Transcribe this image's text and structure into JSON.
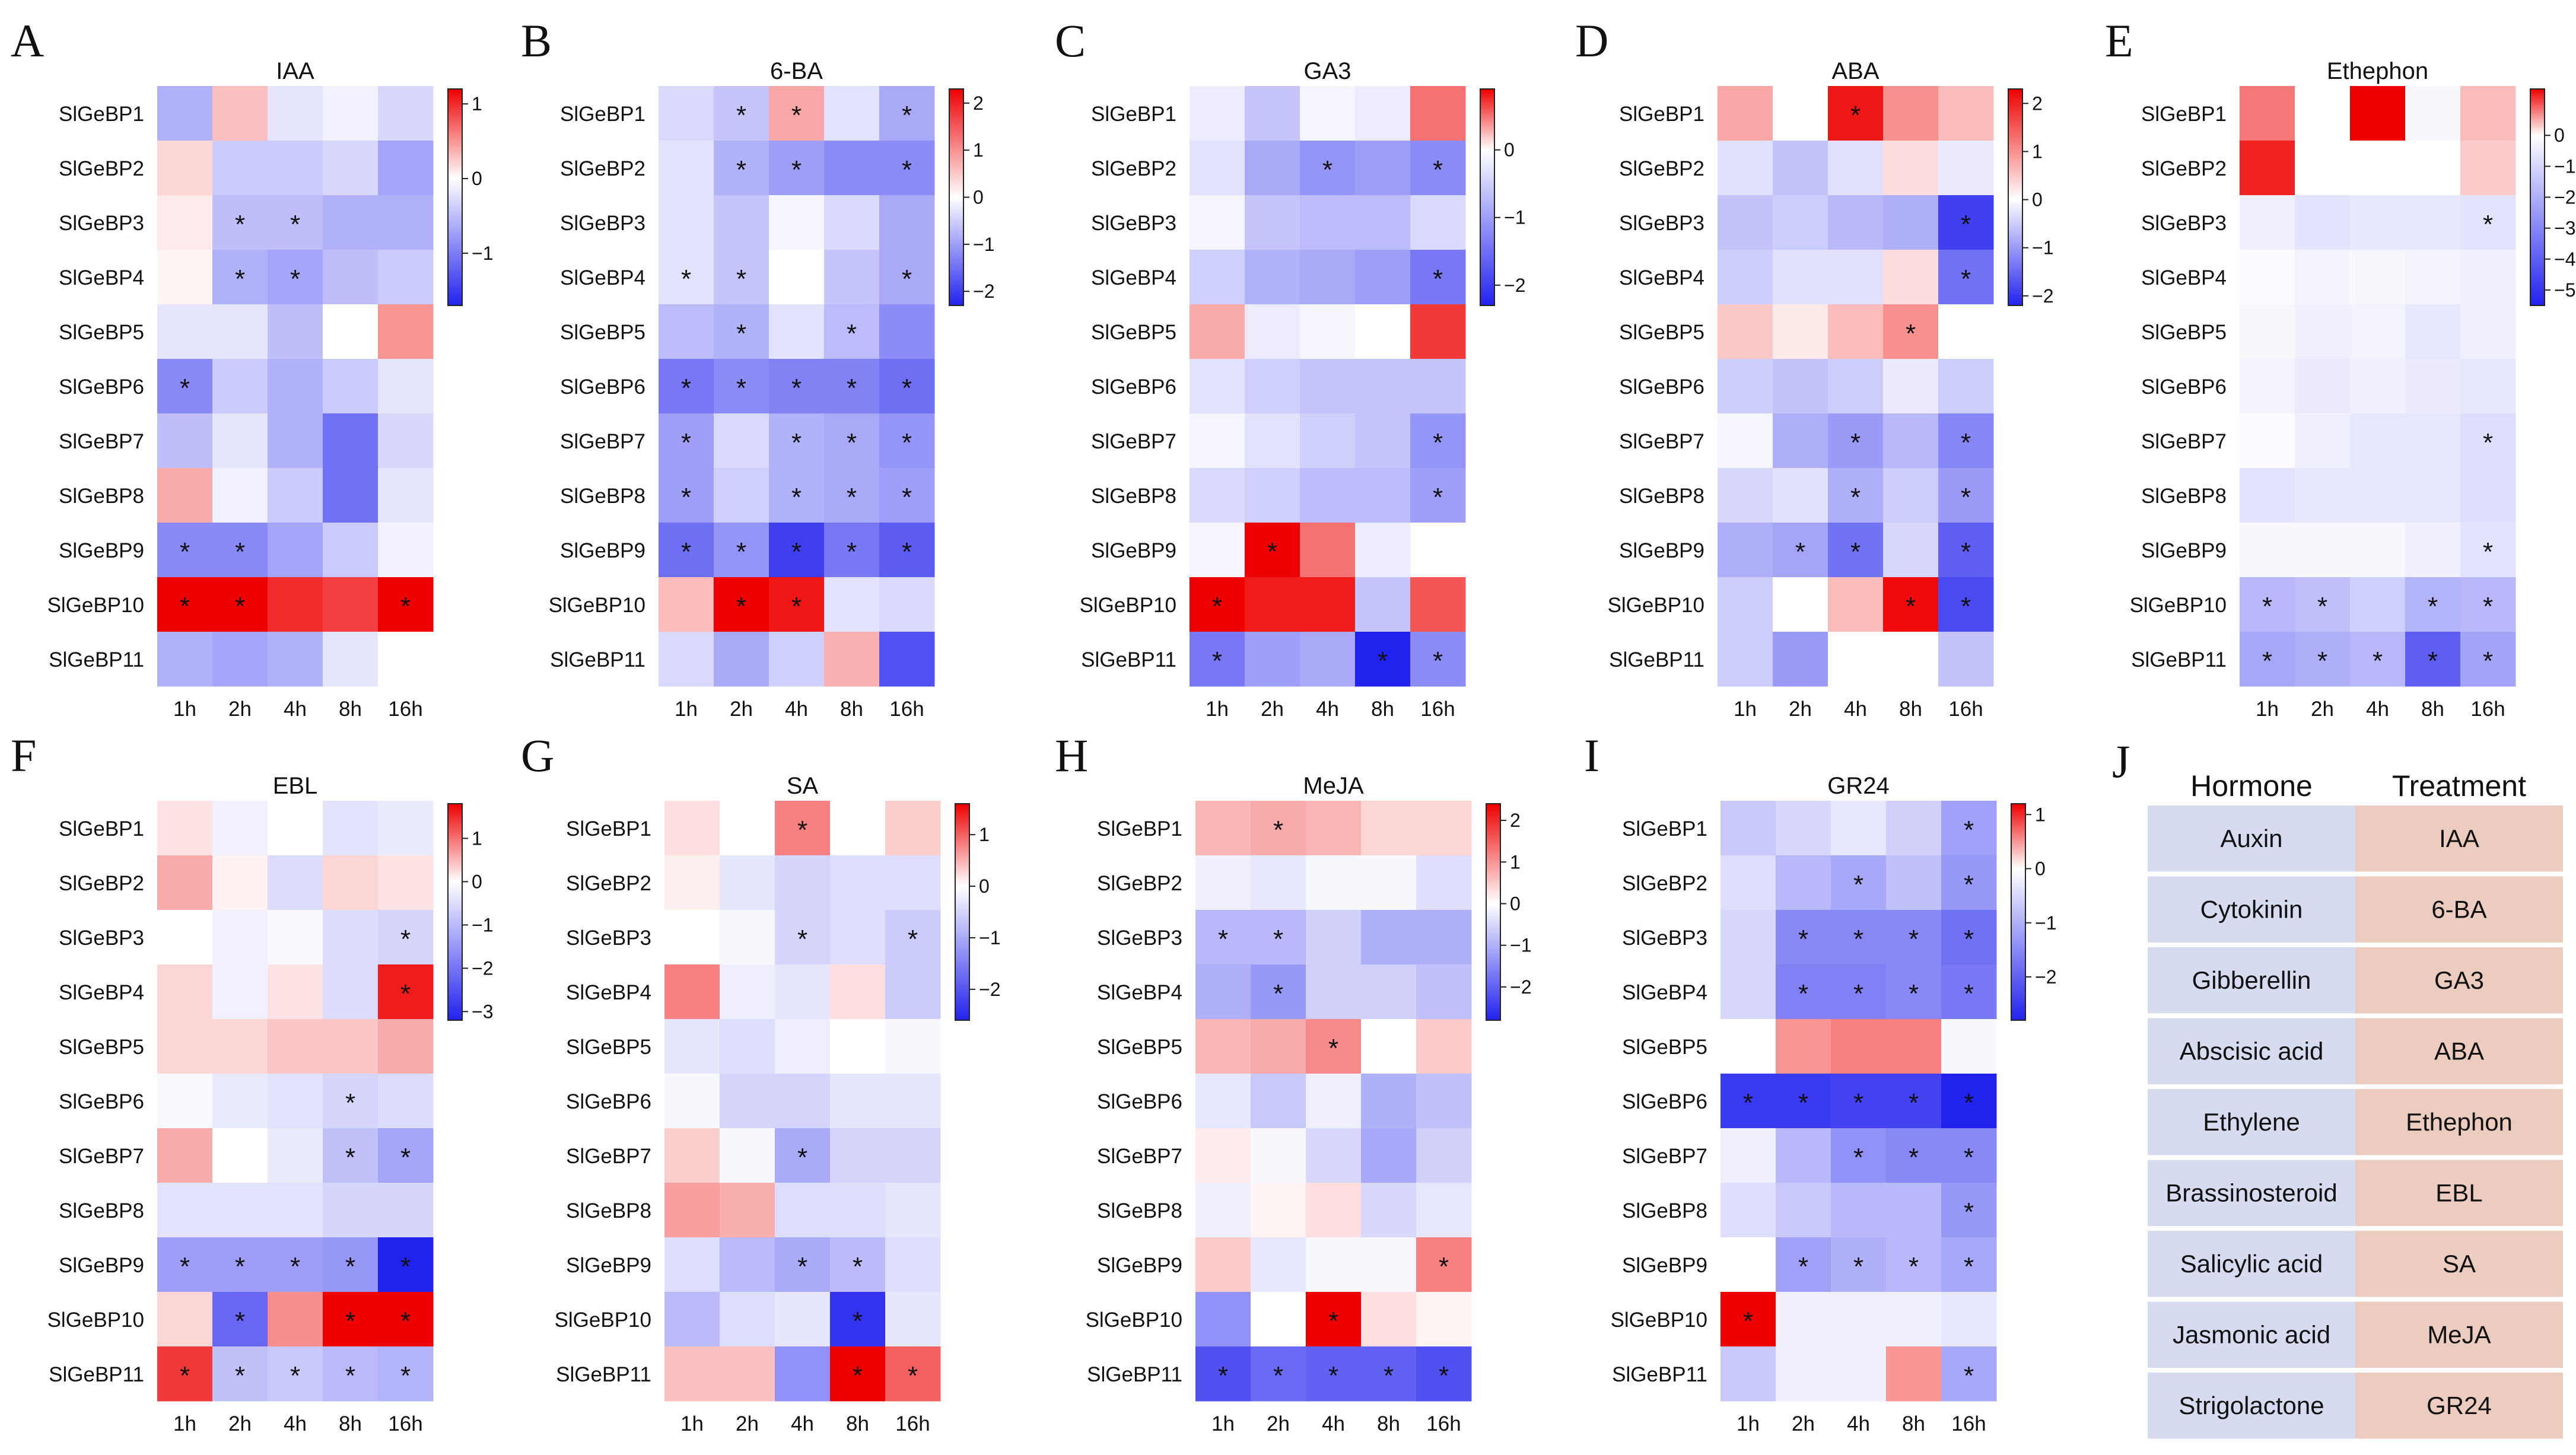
{
  "figure": {
    "genes": [
      "SlGeBP1",
      "SlGeBP2",
      "SlGeBP3",
      "SlGeBP4",
      "SlGeBP5",
      "SlGeBP6",
      "SlGeBP7",
      "SlGeBP8",
      "SlGeBP9",
      "SlGeBP10",
      "SlGeBP11"
    ],
    "timepoints": [
      "1h",
      "2h",
      "4h",
      "8h",
      "16h"
    ],
    "significance_mark": "*"
  },
  "chart_data": [
    {
      "type": "heatmap",
      "letter": "A",
      "title": "IAA",
      "cbar_ticks": [
        1,
        0,
        -1
      ],
      "cbar_range": [
        -1.7,
        1.2
      ],
      "values": [
        [
          -0.6,
          0.3,
          -0.2,
          -0.1,
          -0.3
        ],
        [
          0.2,
          -0.4,
          -0.4,
          -0.3,
          -0.7
        ],
        [
          0.1,
          -0.5,
          -0.5,
          -0.6,
          -0.6
        ],
        [
          0.05,
          -0.6,
          -0.7,
          -0.5,
          -0.4
        ],
        [
          -0.2,
          -0.2,
          -0.5,
          0.0,
          0.5
        ],
        [
          -0.9,
          -0.4,
          -0.6,
          -0.4,
          -0.2
        ],
        [
          -0.5,
          -0.2,
          -0.6,
          -1.1,
          -0.3
        ],
        [
          0.4,
          -0.1,
          -0.4,
          -1.1,
          -0.2
        ],
        [
          -0.9,
          -0.9,
          -0.7,
          -0.4,
          -0.1
        ],
        [
          1.2,
          1.2,
          1.0,
          0.9,
          1.2
        ],
        [
          -0.6,
          -0.7,
          -0.6,
          -0.2,
          0.0
        ]
      ],
      "sig": [
        [],
        [],
        [
          1,
          2
        ],
        [
          1,
          2
        ],
        [],
        [
          0
        ],
        [],
        [],
        [
          0,
          1
        ],
        [
          0,
          1,
          4
        ],
        []
      ]
    },
    {
      "type": "heatmap",
      "letter": "B",
      "title": "6-BA",
      "cbar_ticks": [
        2,
        1,
        0,
        -1,
        -2
      ],
      "cbar_range": [
        -2.3,
        2.3
      ],
      "values": [
        [
          -0.4,
          -0.6,
          0.8,
          -0.3,
          -0.9
        ],
        [
          -0.3,
          -0.8,
          -1.0,
          -1.2,
          -1.2
        ],
        [
          -0.3,
          -0.6,
          -0.1,
          -0.4,
          -0.9
        ],
        [
          -0.3,
          -0.6,
          0.0,
          -0.6,
          -0.9
        ],
        [
          -0.7,
          -0.8,
          -0.3,
          -0.7,
          -1.2
        ],
        [
          -1.4,
          -1.2,
          -1.3,
          -1.3,
          -1.5
        ],
        [
          -1.0,
          -0.4,
          -0.8,
          -0.9,
          -1.1
        ],
        [
          -1.0,
          -0.5,
          -0.8,
          -0.9,
          -1.0
        ],
        [
          -1.5,
          -1.1,
          -2.0,
          -1.4,
          -1.7
        ],
        [
          0.6,
          2.3,
          2.1,
          -0.3,
          -0.4
        ],
        [
          -0.4,
          -0.9,
          -0.5,
          0.7,
          -1.8
        ]
      ],
      "sig": [
        [
          1,
          2,
          4
        ],
        [
          1,
          2,
          4
        ],
        [],
        [
          0,
          1,
          4
        ],
        [
          1,
          3
        ],
        [
          0,
          1,
          2,
          3,
          4
        ],
        [
          0,
          2,
          3,
          4
        ],
        [
          0,
          2,
          3,
          4
        ],
        [
          0,
          1,
          2,
          3,
          4
        ],
        [
          1,
          2
        ],
        []
      ]
    },
    {
      "type": "heatmap",
      "letter": "C",
      "title": "GA3",
      "cbar_ticks": [
        0,
        -1,
        -2
      ],
      "cbar_range": [
        -2.3,
        0.9
      ],
      "values": [
        [
          -0.2,
          -0.6,
          -0.1,
          -0.2,
          0.5
        ],
        [
          -0.3,
          -0.9,
          -1.1,
          -1.0,
          -1.2
        ],
        [
          -0.1,
          -0.6,
          -0.7,
          -0.7,
          -0.4
        ],
        [
          -0.5,
          -0.8,
          -0.9,
          -1.0,
          -1.4
        ],
        [
          0.3,
          -0.2,
          -0.1,
          0.0,
          0.7
        ],
        [
          -0.3,
          -0.5,
          -0.6,
          -0.6,
          -0.6
        ],
        [
          -0.1,
          -0.3,
          -0.5,
          -0.6,
          -1.1
        ],
        [
          -0.4,
          -0.5,
          -0.7,
          -0.7,
          -1.0
        ],
        [
          -0.1,
          0.9,
          0.5,
          -0.2,
          0.0
        ],
        [
          0.9,
          0.8,
          0.8,
          -0.6,
          0.6
        ],
        [
          -1.4,
          -1.0,
          -0.9,
          -2.3,
          -1.2
        ]
      ],
      "sig": [
        [],
        [
          2,
          4
        ],
        [],
        [
          4
        ],
        [],
        [],
        [
          4
        ],
        [
          4
        ],
        [
          1
        ],
        [
          0
        ],
        [
          0,
          3,
          4
        ]
      ]
    },
    {
      "type": "heatmap",
      "letter": "D",
      "title": "ABA",
      "cbar_ticks": [
        2,
        1,
        0,
        -1,
        -2
      ],
      "cbar_range": [
        -2.2,
        2.3
      ],
      "values": [
        [
          0.8,
          0.0,
          2.1,
          1.0,
          0.6
        ],
        [
          -0.3,
          -0.6,
          -0.3,
          0.3,
          -0.2
        ],
        [
          -0.6,
          -0.5,
          -0.7,
          -0.8,
          -1.9
        ],
        [
          -0.5,
          -0.3,
          -0.3,
          0.3,
          -1.4
        ],
        [
          0.5,
          0.2,
          0.6,
          1.0,
          0.0
        ],
        [
          -0.5,
          -0.6,
          -0.5,
          -0.2,
          -0.5
        ],
        [
          -0.1,
          -0.8,
          -1.0,
          -0.7,
          -1.2
        ],
        [
          -0.4,
          -0.3,
          -0.8,
          -0.5,
          -1.0
        ],
        [
          -0.8,
          -0.9,
          -1.4,
          -0.4,
          -1.6
        ],
        [
          -0.5,
          0.0,
          0.6,
          2.2,
          -1.8
        ],
        [
          -0.5,
          -1.0,
          0.0,
          0.0,
          -0.6
        ]
      ],
      "sig": [
        [
          2
        ],
        [],
        [
          4
        ],
        [
          4
        ],
        [
          3
        ],
        [],
        [
          2,
          4
        ],
        [
          2,
          4
        ],
        [
          1,
          2,
          4
        ],
        [
          3,
          4
        ],
        []
      ]
    },
    {
      "type": "heatmap",
      "letter": "E",
      "title": "Ethephon",
      "cbar_ticks": [
        0,
        -1,
        -2,
        -3,
        -4,
        -5
      ],
      "cbar_range": [
        -5.5,
        1.5
      ],
      "values": [
        [
          0.8,
          0.0,
          1.5,
          -0.2,
          0.4
        ],
        [
          1.3,
          0.0,
          0.0,
          0.0,
          0.3
        ],
        [
          -0.4,
          -0.7,
          -0.6,
          -0.6,
          -0.7
        ],
        [
          -0.1,
          -0.3,
          -0.2,
          -0.3,
          -0.4
        ],
        [
          -0.2,
          -0.4,
          -0.3,
          -0.6,
          -0.4
        ],
        [
          -0.3,
          -0.5,
          -0.4,
          -0.5,
          -0.6
        ],
        [
          -0.1,
          -0.4,
          -0.6,
          -0.6,
          -0.8
        ],
        [
          -0.7,
          -0.6,
          -0.6,
          -0.6,
          -0.8
        ],
        [
          -0.2,
          -0.2,
          -0.2,
          -0.4,
          -0.7
        ],
        [
          -1.8,
          -1.6,
          -1.2,
          -1.9,
          -1.8
        ],
        [
          -2.2,
          -2.0,
          -1.8,
          -4.0,
          -2.3
        ]
      ],
      "sig": [
        [],
        [],
        [
          4
        ],
        [],
        [],
        [],
        [
          4
        ],
        [],
        [
          4
        ],
        [
          0,
          1,
          3,
          4
        ],
        [
          0,
          1,
          2,
          3,
          4
        ]
      ]
    },
    {
      "type": "heatmap",
      "letter": "F",
      "title": "EBL",
      "cbar_ticks": [
        1,
        0,
        -1,
        -2,
        -3
      ],
      "cbar_range": [
        -3.2,
        1.8
      ],
      "values": [
        [
          0.2,
          -0.2,
          0.0,
          -0.4,
          -0.3
        ],
        [
          0.6,
          0.1,
          -0.5,
          0.3,
          0.2
        ],
        [
          0.0,
          -0.2,
          -0.1,
          -0.5,
          -0.6
        ],
        [
          0.3,
          -0.2,
          0.2,
          -0.5,
          1.6
        ],
        [
          0.3,
          0.3,
          0.4,
          0.4,
          0.6
        ],
        [
          -0.1,
          -0.3,
          -0.4,
          -0.6,
          -0.5
        ],
        [
          0.6,
          0.0,
          -0.3,
          -0.9,
          -1.3
        ],
        [
          -0.4,
          -0.4,
          -0.4,
          -0.6,
          -0.6
        ],
        [
          -1.4,
          -1.4,
          -1.4,
          -1.5,
          -3.2
        ],
        [
          0.3,
          -2.2,
          0.8,
          1.8,
          1.8
        ],
        [
          1.4,
          -0.9,
          -0.8,
          -1.0,
          -1.1
        ]
      ],
      "sig": [
        [],
        [],
        [
          4
        ],
        [
          4
        ],
        [],
        [
          3
        ],
        [
          3,
          4
        ],
        [],
        [
          0,
          1,
          2,
          3,
          4
        ],
        [
          1,
          3,
          4
        ],
        [
          0,
          1,
          2,
          3,
          4
        ]
      ]
    },
    {
      "type": "heatmap",
      "letter": "G",
      "title": "SA",
      "cbar_ticks": [
        1,
        0,
        -1,
        -2
      ],
      "cbar_range": [
        -2.6,
        1.6
      ],
      "values": [
        [
          0.2,
          0.0,
          0.8,
          0.0,
          0.3
        ],
        [
          0.1,
          -0.3,
          -0.5,
          -0.4,
          -0.4
        ],
        [
          0.0,
          -0.1,
          -0.5,
          -0.4,
          -0.6
        ],
        [
          0.8,
          -0.2,
          -0.3,
          0.2,
          -0.6
        ],
        [
          -0.3,
          -0.4,
          -0.2,
          0.0,
          -0.1
        ],
        [
          -0.1,
          -0.5,
          -0.5,
          -0.3,
          -0.3
        ],
        [
          0.3,
          -0.1,
          -1.0,
          -0.5,
          -0.5
        ],
        [
          0.6,
          0.5,
          -0.4,
          -0.4,
          -0.3
        ],
        [
          -0.4,
          -0.8,
          -1.0,
          -0.8,
          -0.4
        ],
        [
          -0.8,
          -0.4,
          -0.3,
          -2.4,
          -0.3
        ],
        [
          0.4,
          0.4,
          -1.3,
          1.6,
          1.0
        ]
      ],
      "sig": [
        [
          2
        ],
        [],
        [
          2,
          4
        ],
        [],
        [],
        [],
        [
          2
        ],
        [],
        [
          2,
          3
        ],
        [
          3
        ],
        [
          3,
          4
        ]
      ]
    },
    {
      "type": "heatmap",
      "letter": "H",
      "title": "MeJA",
      "cbar_ticks": [
        2,
        1,
        0,
        -1,
        -2
      ],
      "cbar_range": [
        -2.8,
        2.4
      ],
      "values": [
        [
          0.7,
          0.8,
          0.7,
          0.4,
          0.4
        ],
        [
          -0.2,
          -0.3,
          -0.1,
          -0.1,
          -0.4
        ],
        [
          -0.9,
          -0.9,
          -0.6,
          -1.0,
          -1.0
        ],
        [
          -1.0,
          -1.3,
          -0.6,
          -0.6,
          -0.8
        ],
        [
          0.7,
          0.8,
          1.1,
          0.0,
          0.5
        ],
        [
          -0.3,
          -0.7,
          -0.2,
          -1.0,
          -0.8
        ],
        [
          0.2,
          -0.1,
          -0.5,
          -1.1,
          -0.6
        ],
        [
          -0.2,
          0.1,
          0.3,
          -0.5,
          -0.3
        ],
        [
          0.5,
          -0.3,
          -0.1,
          -0.1,
          1.2
        ],
        [
          -1.4,
          0.0,
          2.4,
          0.3,
          0.1
        ],
        [
          -2.2,
          -1.9,
          -2.0,
          -2.0,
          -2.2
        ]
      ],
      "sig": [
        [
          1
        ],
        [],
        [
          0,
          1
        ],
        [
          1
        ],
        [
          2
        ],
        [],
        [],
        [],
        [
          4
        ],
        [
          2
        ],
        [
          0,
          1,
          2,
          3,
          4
        ]
      ]
    },
    {
      "type": "heatmap",
      "letter": "I",
      "title": "GR24",
      "cbar_ticks": [
        1,
        0,
        -1,
        -2
      ],
      "cbar_range": [
        -2.8,
        1.2
      ],
      "values": [
        [
          -0.7,
          -0.5,
          -0.3,
          -0.6,
          -1.2
        ],
        [
          -0.4,
          -0.9,
          -1.1,
          -0.8,
          -1.3
        ],
        [
          -0.5,
          -1.5,
          -1.5,
          -1.5,
          -1.8
        ],
        [
          -0.5,
          -1.6,
          -1.6,
          -1.5,
          -1.7
        ],
        [
          0.0,
          0.5,
          0.6,
          0.6,
          -0.1
        ],
        [
          -2.5,
          -2.5,
          -2.4,
          -2.4,
          -2.8
        ],
        [
          -0.2,
          -0.9,
          -1.4,
          -1.5,
          -1.5
        ],
        [
          -0.4,
          -0.7,
          -0.9,
          -0.9,
          -1.3
        ],
        [
          0.0,
          -1.2,
          -1.0,
          -0.9,
          -1.1
        ],
        [
          1.2,
          -0.2,
          -0.2,
          -0.2,
          -0.3
        ],
        [
          -0.7,
          -0.2,
          -0.2,
          0.5,
          -1.1
        ]
      ],
      "sig": [
        [
          4
        ],
        [
          2,
          4
        ],
        [
          1,
          2,
          3,
          4
        ],
        [
          1,
          2,
          3,
          4
        ],
        [],
        [
          0,
          1,
          2,
          3,
          4
        ],
        [
          2,
          3,
          4
        ],
        [
          4
        ],
        [
          1,
          2,
          3,
          4
        ],
        [
          0
        ],
        [
          4
        ]
      ]
    }
  ],
  "table": {
    "letter": "J",
    "header_hormone": "Hormone",
    "header_treatment": "Treatment",
    "rows": [
      {
        "hormone": "Auxin",
        "treatment": "IAA"
      },
      {
        "hormone": "Cytokinin",
        "treatment": "6-BA"
      },
      {
        "hormone": "Gibberellin",
        "treatment": "GA3"
      },
      {
        "hormone": "Abscisic acid",
        "treatment": "ABA"
      },
      {
        "hormone": "Ethylene",
        "treatment": "Ethephon"
      },
      {
        "hormone": "Brassinosteroid",
        "treatment": "EBL"
      },
      {
        "hormone": "Salicylic acid",
        "treatment": "SA"
      },
      {
        "hormone": "Jasmonic acid",
        "treatment": "MeJA"
      },
      {
        "hormone": "Strigolactone",
        "treatment": "GR24"
      }
    ],
    "hormone_color": "#d6dbf0",
    "treatment_color": "#ecccbf"
  },
  "colors": {
    "high": "#ee0000",
    "mid": "#ffffff",
    "low": "#2222ee"
  }
}
